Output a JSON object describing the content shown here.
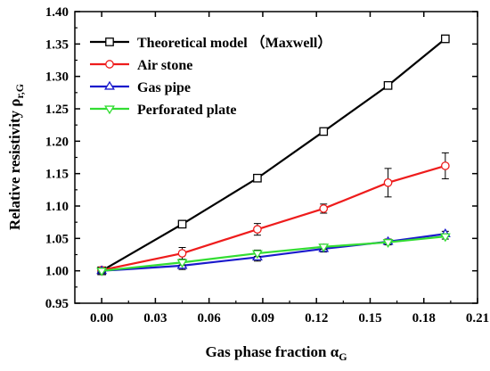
{
  "chart_data": {
    "type": "line",
    "xlabel": "Gas phase fraction α",
    "xlabel_sub": "G",
    "ylabel": "Relative resistivity ρ",
    "ylabel_sub": "r,G",
    "xlim": [
      -0.015,
      0.21
    ],
    "ylim": [
      0.95,
      1.4
    ],
    "xticks": [
      "0.00",
      "0.03",
      "0.06",
      "0.09",
      "0.12",
      "0.15",
      "0.18",
      "0.21"
    ],
    "yticks": [
      "0.95",
      "1.00",
      "1.05",
      "1.10",
      "1.15",
      "1.20",
      "1.25",
      "1.30",
      "1.35",
      "1.40"
    ],
    "legend_position": "top-left",
    "series": [
      {
        "name": "Theoretical model （Maxwell）",
        "color": "#000000",
        "marker": "square",
        "x": [
          0.0,
          0.045,
          0.087,
          0.124,
          0.16,
          0.192
        ],
        "y": [
          1.0,
          1.072,
          1.143,
          1.215,
          1.286,
          1.358
        ],
        "err": null
      },
      {
        "name": "Air stone",
        "color": "#ee1c1c",
        "marker": "circle",
        "x": [
          0.0,
          0.045,
          0.087,
          0.124,
          0.16,
          0.192
        ],
        "y": [
          1.001,
          1.027,
          1.064,
          1.096,
          1.136,
          1.162
        ],
        "err": [
          0.004,
          0.009,
          0.009,
          0.007,
          0.022,
          0.02
        ]
      },
      {
        "name": "Gas pipe",
        "color": "#1a1acc",
        "marker": "triangle-up",
        "x": [
          0.0,
          0.045,
          0.087,
          0.124,
          0.16,
          0.192
        ],
        "y": [
          1.0,
          1.008,
          1.021,
          1.034,
          1.045,
          1.057
        ],
        "err": [
          0.004,
          0.006,
          0.006,
          0.005,
          0.004,
          0.004
        ]
      },
      {
        "name": "Perforated plate",
        "color": "#33dd33",
        "marker": "triangle-down",
        "x": [
          0.0,
          0.045,
          0.087,
          0.124,
          0.16,
          0.192
        ],
        "y": [
          1.0,
          1.013,
          1.027,
          1.037,
          1.044,
          1.053
        ],
        "err": [
          0.003,
          0.004,
          0.005,
          0.004,
          0.004,
          0.004
        ]
      }
    ]
  }
}
